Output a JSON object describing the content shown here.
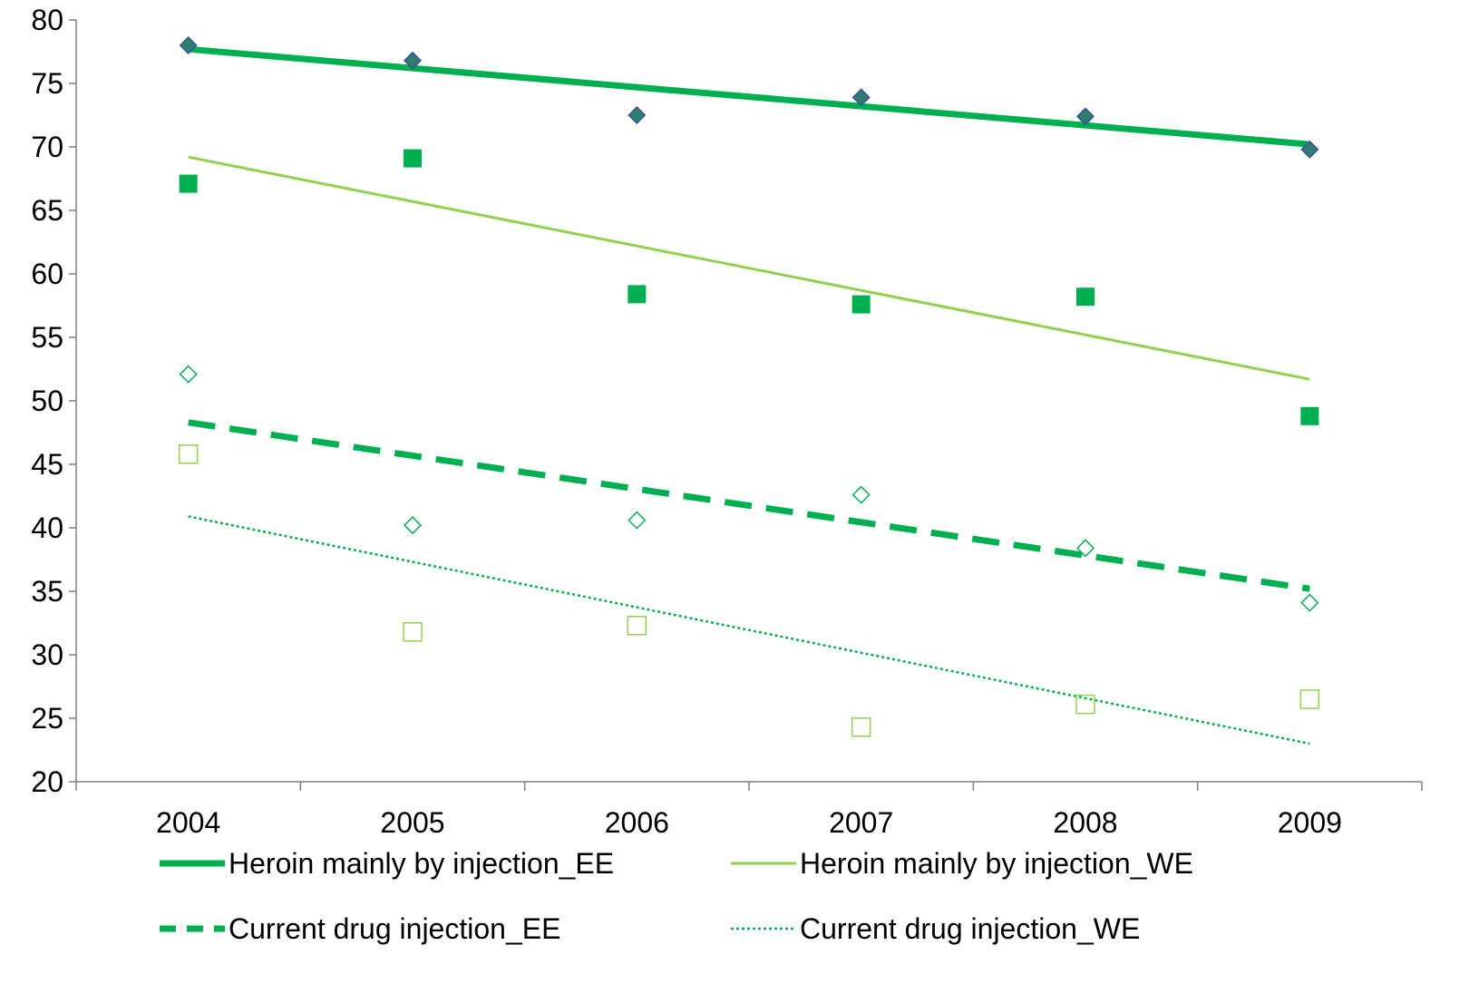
{
  "chart_data": {
    "type": "scatter",
    "title": "",
    "xlabel": "",
    "ylabel": "",
    "categories": [
      "2004",
      "2005",
      "2006",
      "2007",
      "2008",
      "2009"
    ],
    "ylim": [
      20,
      80
    ],
    "yticks": [
      "20",
      "25",
      "30",
      "35",
      "40",
      "45",
      "50",
      "55",
      "60",
      "65",
      "70",
      "75",
      "80"
    ],
    "grid": false,
    "legend_position": "bottom",
    "series": [
      {
        "name": "Heroin mainly by injection_EE",
        "marker": "filled-diamond",
        "marker_color": "#2e7d6e",
        "marker_outline": "#3b4fa0",
        "line_color": "#00b050",
        "line_style": "solid-thick",
        "values": [
          78.0,
          76.8,
          72.5,
          73.9,
          72.4,
          69.8
        ],
        "trend": [
          77.7,
          70.2
        ]
      },
      {
        "name": "Heroin mainly by injection_WE",
        "marker": "filled-square",
        "marker_color": "#00b050",
        "line_color": "#92d050",
        "line_style": "solid-thin",
        "values": [
          67.1,
          69.1,
          58.4,
          57.6,
          58.2,
          48.8
        ],
        "trend": [
          69.2,
          51.7
        ]
      },
      {
        "name": "Current drug injection_EE",
        "marker": "open-diamond",
        "marker_color": "#00b050",
        "line_color": "#00b050",
        "line_style": "dashed-thick",
        "values": [
          52.1,
          40.2,
          40.6,
          42.6,
          38.4,
          34.1
        ],
        "trend": [
          48.3,
          35.2
        ]
      },
      {
        "name": "Current drug injection_WE",
        "marker": "open-square",
        "marker_color": "#92d050",
        "line_color": "#00b050",
        "line_style": "dotted",
        "values": [
          45.8,
          31.8,
          32.3,
          24.3,
          26.1,
          26.5
        ],
        "trend": [
          40.9,
          23.0
        ]
      }
    ]
  }
}
